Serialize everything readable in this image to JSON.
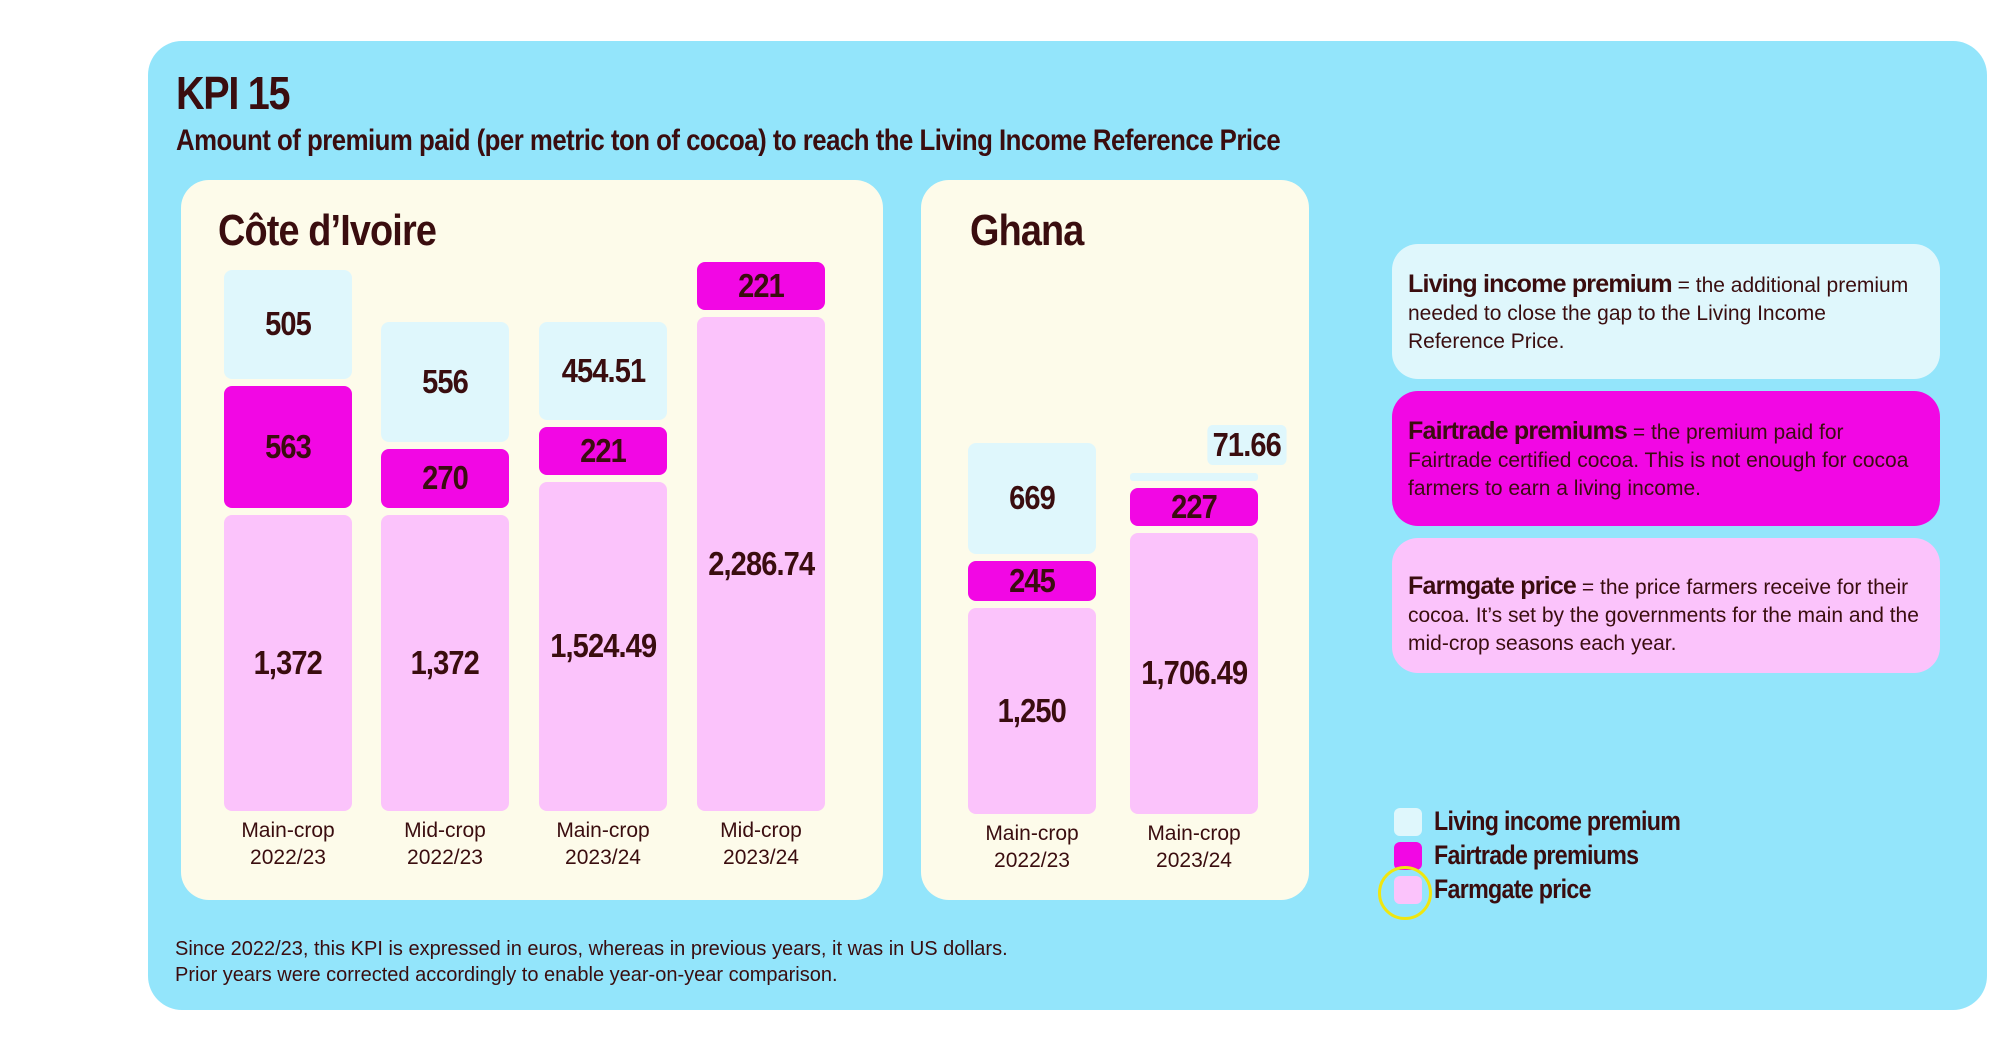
{
  "kpi_title": "KPI 15",
  "subtitle": "Amount of premium paid (per metric ton of cocoa) to reach the Living Income Reference Price",
  "colors": {
    "background": "#93e5fb",
    "panel": "#fdfbea",
    "living_income_premium": "#dff7fc",
    "fairtrade_premiums": "#f207e4",
    "farmgate_price": "#fbc3fb",
    "text": "#3a0d0f"
  },
  "chart_data": [
    {
      "type": "bar",
      "stacked": true,
      "title": "Côte d’Ivoire",
      "categories": [
        [
          "Main-crop",
          "2022/23"
        ],
        [
          "Mid-crop",
          "2022/23"
        ],
        [
          "Main-crop",
          "2023/24"
        ],
        [
          "Mid-crop",
          "2023/24"
        ]
      ],
      "series": [
        {
          "name": "Farmgate price",
          "values": [
            1372,
            1372,
            1524.49,
            2286.74
          ],
          "labels": [
            "1,372",
            "1,372",
            "1,524.49",
            "2,286.74"
          ]
        },
        {
          "name": "Fairtrade premiums",
          "values": [
            563,
            270,
            221,
            221
          ],
          "labels": [
            "563",
            "270",
            "221",
            "221"
          ]
        },
        {
          "name": "Living income premium",
          "values": [
            505,
            556,
            454.51,
            0
          ],
          "labels": [
            "505",
            "556",
            "454.51",
            ""
          ]
        }
      ]
    },
    {
      "type": "bar",
      "stacked": true,
      "title": "Ghana",
      "categories": [
        [
          "Main-crop",
          "2022/23"
        ],
        [
          "Main-crop",
          "2023/24"
        ]
      ],
      "series": [
        {
          "name": "Farmgate price",
          "values": [
            1250,
            1706.49
          ],
          "labels": [
            "1,250",
            "1,706.49"
          ]
        },
        {
          "name": "Fairtrade premiums",
          "values": [
            245,
            227
          ],
          "labels": [
            "245",
            "227"
          ]
        },
        {
          "name": "Living income premium",
          "values": [
            669,
            71.66
          ],
          "labels": [
            "669",
            "71.66"
          ]
        }
      ]
    }
  ],
  "definitions": [
    {
      "term": "Living income premium",
      "text": "= the additional premium needed to close the gap to the Living Income Reference Price."
    },
    {
      "term": "Fairtrade premiums",
      "text": "= the premium paid for Fairtrade certified cocoa. This is not enough for cocoa farmers to earn a living income."
    },
    {
      "term": "Farmgate price",
      "text": "= the price farmers receive for their cocoa. It’s set by the governments for the main and the mid-crop seasons each year."
    }
  ],
  "legend": [
    "Living income premium",
    "Fairtrade premiums",
    "Farmgate price"
  ],
  "footnote": "Since 2022/23, this KPI is expressed in euros, whereas in previous years, it was in US dollars. Prior years were corrected accordingly to enable year-on-year comparison."
}
